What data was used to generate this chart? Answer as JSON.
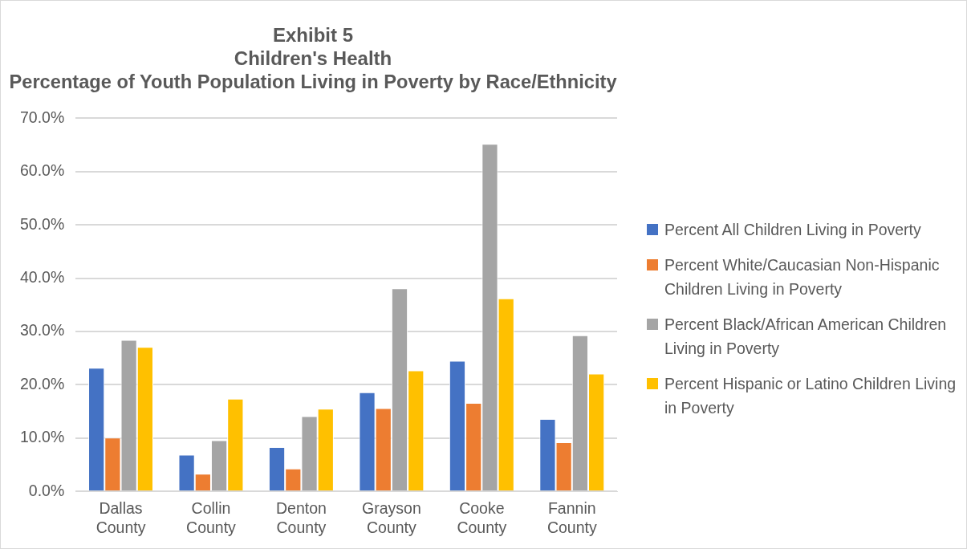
{
  "chart_data": {
    "type": "bar",
    "title": "Exhibit 5\nChildren's Health\nPercentage of Youth Population Living in Poverty by Race/Ethnicity",
    "categories": [
      "Dallas County",
      "Collin County",
      "Denton County",
      "Grayson County",
      "Cooke County",
      "Fannin County"
    ],
    "series": [
      {
        "name": "Percent All Children Living in Poverty",
        "color": "#4472c4",
        "values": [
          23.2,
          6.9,
          8.3,
          18.6,
          24.5,
          13.6
        ]
      },
      {
        "name": "Percent White/Caucasian Non-Hispanic Children Living in Poverty",
        "color": "#ed7d31",
        "values": [
          10.1,
          3.3,
          4.3,
          15.6,
          16.6,
          9.2
        ]
      },
      {
        "name": "Percent Black/African American Children Living in Poverty",
        "color": "#a5a5a5",
        "values": [
          28.4,
          9.6,
          14.1,
          38.1,
          65.2,
          29.3
        ]
      },
      {
        "name": "Percent Hispanic or Latino Children Living in Poverty",
        "color": "#ffc000",
        "values": [
          27.1,
          17.4,
          15.5,
          22.7,
          36.2,
          22.1
        ]
      }
    ],
    "ylim": [
      0,
      70
    ],
    "yticks": [
      {
        "value": 0,
        "label": "0.0%"
      },
      {
        "value": 10,
        "label": "10.0%"
      },
      {
        "value": 20,
        "label": "20.0%"
      },
      {
        "value": 30,
        "label": "30.0%"
      },
      {
        "value": 40,
        "label": "40.0%"
      },
      {
        "value": 50,
        "label": "50.0%"
      },
      {
        "value": 60,
        "label": "60.0%"
      },
      {
        "value": 70,
        "label": "70.0%"
      }
    ],
    "grid": "y",
    "legend": "right"
  }
}
